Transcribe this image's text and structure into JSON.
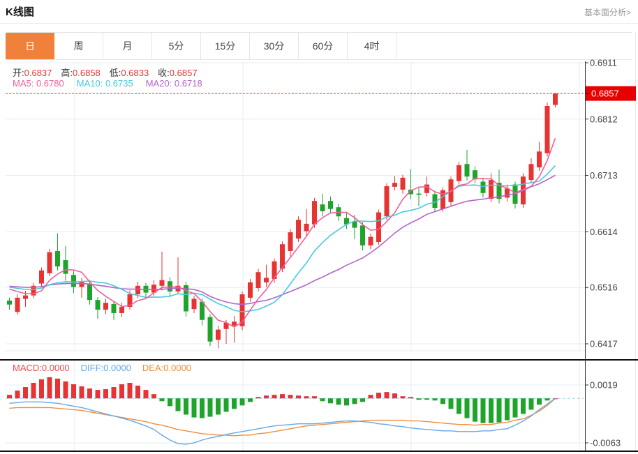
{
  "header": {
    "title": "K线图",
    "link": "基本面分析>"
  },
  "tabs": {
    "items": [
      "日",
      "周",
      "月",
      "5分",
      "15分",
      "30分",
      "60分",
      "4时"
    ],
    "active": 0
  },
  "ohlc": {
    "open_label": "开:",
    "open": "0.6837",
    "high_label": "高:",
    "high": "0.6858",
    "low_label": "低:",
    "low": "0.6833",
    "close_label": "收:",
    "close": "0.6857"
  },
  "ma": {
    "ma5_label": "MA5:",
    "ma5": "0.6780",
    "ma10_label": "MA10:",
    "ma10": "0.6735",
    "ma20_label": "MA20:",
    "ma20": "0.6718"
  },
  "macd_info": {
    "macd_label": "MACD:",
    "macd": "0.0000",
    "diff_label": "DIFF:",
    "diff": "0.0000",
    "dea_label": "DEA:",
    "dea": "0.0000"
  },
  "price_tag": "0.6857",
  "colors": {
    "up": "#e83333",
    "down": "#1ea32b",
    "ma5": "#ef5f9a",
    "ma10": "#49c8de",
    "ma20": "#b164c8",
    "diff": "#64a8e8",
    "dea": "#f08e3c",
    "macd_label": "#f24b4b",
    "accent_tab": "#f0813a",
    "tag_bg": "#e60000",
    "dashed_price": "#e13030",
    "dashed_zero": "#9fd3e8",
    "grid": "#e6edf4",
    "axis": "#333333",
    "border": "#111111"
  },
  "chart_data": {
    "type": "candlestick+macd",
    "y_axis": {
      "ticks": [
        0.6911,
        0.6812,
        0.6713,
        0.6614,
        0.6516,
        0.6417
      ],
      "labels": [
        "0.6911",
        "0.6812",
        "0.6713",
        "0.6614",
        "0.6516",
        "0.6417"
      ],
      "current": 0.6857
    },
    "macd_axis": {
      "ticks": [
        0.0019,
        -0.0063
      ],
      "labels": [
        "0.0019",
        "-0.0063"
      ]
    },
    "ma_seed": 0.652,
    "candles": [
      [
        0.6493,
        0.6486,
        0.6477,
        0.6498
      ],
      [
        0.6473,
        0.6498,
        0.6468,
        0.6504
      ],
      [
        0.6496,
        0.6502,
        0.6482,
        0.651
      ],
      [
        0.6502,
        0.6519,
        0.6497,
        0.6524
      ],
      [
        0.6523,
        0.6546,
        0.6517,
        0.6551
      ],
      [
        0.6541,
        0.6578,
        0.6536,
        0.6584
      ],
      [
        0.658,
        0.6553,
        0.6546,
        0.6611
      ],
      [
        0.6564,
        0.654,
        0.6528,
        0.6589
      ],
      [
        0.6538,
        0.6517,
        0.6506,
        0.6545
      ],
      [
        0.6517,
        0.6526,
        0.6498,
        0.6533
      ],
      [
        0.6522,
        0.6494,
        0.6486,
        0.6529
      ],
      [
        0.6494,
        0.6477,
        0.6461,
        0.6499
      ],
      [
        0.6477,
        0.6489,
        0.6469,
        0.6496
      ],
      [
        0.6487,
        0.6471,
        0.6459,
        0.6493
      ],
      [
        0.6471,
        0.6482,
        0.6464,
        0.6489
      ],
      [
        0.6482,
        0.6504,
        0.6477,
        0.6511
      ],
      [
        0.6504,
        0.6519,
        0.6497,
        0.6526
      ],
      [
        0.6519,
        0.6507,
        0.6499,
        0.6524
      ],
      [
        0.6507,
        0.6521,
        0.6501,
        0.6529
      ],
      [
        0.6519,
        0.6529,
        0.6511,
        0.6579
      ],
      [
        0.6527,
        0.6509,
        0.6499,
        0.6534
      ],
      [
        0.6509,
        0.6519,
        0.6504,
        0.6569
      ],
      [
        0.652,
        0.6474,
        0.6465,
        0.6526
      ],
      [
        0.6478,
        0.6496,
        0.6471,
        0.6501
      ],
      [
        0.6491,
        0.6459,
        0.6449,
        0.6497
      ],
      [
        0.6464,
        0.6421,
        0.6413,
        0.6469
      ],
      [
        0.6424,
        0.6442,
        0.6409,
        0.6449
      ],
      [
        0.6443,
        0.6454,
        0.6417,
        0.6459
      ],
      [
        0.6449,
        0.6456,
        0.6419,
        0.6466
      ],
      [
        0.6448,
        0.6504,
        0.6441,
        0.6509
      ],
      [
        0.6498,
        0.6525,
        0.6491,
        0.6531
      ],
      [
        0.6515,
        0.6543,
        0.6509,
        0.6549
      ],
      [
        0.6525,
        0.6533,
        0.6517,
        0.6556
      ],
      [
        0.6531,
        0.6562,
        0.6524,
        0.6567
      ],
      [
        0.6549,
        0.6592,
        0.6543,
        0.6597
      ],
      [
        0.658,
        0.6613,
        0.6571,
        0.6619
      ],
      [
        0.6602,
        0.6635,
        0.6596,
        0.6641
      ],
      [
        0.6615,
        0.6628,
        0.6607,
        0.6654
      ],
      [
        0.6627,
        0.6668,
        0.6621,
        0.6673
      ],
      [
        0.6662,
        0.665,
        0.6641,
        0.6681
      ],
      [
        0.6668,
        0.6654,
        0.6646,
        0.6676
      ],
      [
        0.6657,
        0.6641,
        0.6633,
        0.6663
      ],
      [
        0.6638,
        0.6627,
        0.6619,
        0.6649
      ],
      [
        0.6632,
        0.6621,
        0.6601,
        0.6644
      ],
      [
        0.6625,
        0.659,
        0.6581,
        0.6631
      ],
      [
        0.659,
        0.6605,
        0.6583,
        0.6611
      ],
      [
        0.6596,
        0.6648,
        0.6591,
        0.6653
      ],
      [
        0.6641,
        0.6694,
        0.6635,
        0.6699
      ],
      [
        0.6693,
        0.67,
        0.6687,
        0.6712
      ],
      [
        0.6688,
        0.6709,
        0.6681,
        0.6714
      ],
      [
        0.6688,
        0.668,
        0.6671,
        0.6724
      ],
      [
        0.6681,
        0.6679,
        0.6659,
        0.6691
      ],
      [
        0.6682,
        0.6697,
        0.6676,
        0.6711
      ],
      [
        0.668,
        0.6656,
        0.6649,
        0.6686
      ],
      [
        0.6654,
        0.6687,
        0.6649,
        0.6692
      ],
      [
        0.6666,
        0.6706,
        0.6659,
        0.6711
      ],
      [
        0.6703,
        0.6731,
        0.6697,
        0.6737
      ],
      [
        0.6733,
        0.6711,
        0.6704,
        0.6758
      ],
      [
        0.6722,
        0.6706,
        0.6699,
        0.6729
      ],
      [
        0.6702,
        0.6682,
        0.6674,
        0.6709
      ],
      [
        0.6672,
        0.6705,
        0.6666,
        0.6717
      ],
      [
        0.67,
        0.6672,
        0.6664,
        0.6723
      ],
      [
        0.6674,
        0.669,
        0.6667,
        0.6697
      ],
      [
        0.6697,
        0.6663,
        0.6655,
        0.6702
      ],
      [
        0.6662,
        0.6711,
        0.6656,
        0.6717
      ],
      [
        0.6705,
        0.6733,
        0.6699,
        0.6743
      ],
      [
        0.6727,
        0.6755,
        0.6721,
        0.6772
      ],
      [
        0.6752,
        0.6835,
        0.6746,
        0.6841
      ],
      [
        0.6837,
        0.6857,
        0.6833,
        0.6858
      ]
    ],
    "macd_hist": [
      0.0005,
      0.0011,
      0.0016,
      0.0022,
      0.0027,
      0.003,
      0.0028,
      0.0024,
      0.002,
      0.0017,
      0.0014,
      0.0012,
      0.0013,
      0.0016,
      0.002,
      0.0022,
      0.0018,
      0.0012,
      0.0006,
      -0.0004,
      -0.0011,
      -0.0018,
      -0.0023,
      -0.0027,
      -0.0028,
      -0.0026,
      -0.0023,
      -0.0019,
      -0.0015,
      -0.001,
      -0.0005,
      0.0002,
      0.0004,
      0.0005,
      0.0006,
      0.0005,
      0.0004,
      0.0003,
      0.0003,
      -0.0004,
      -0.0007,
      -0.0009,
      -0.001,
      -0.0008,
      -0.0005,
      0.0005,
      0.0008,
      0.0009,
      0.0007,
      0.0003,
      0.0002,
      -0.0002,
      -0.0002,
      -0.0003,
      -0.0008,
      -0.0015,
      -0.0022,
      -0.0028,
      -0.0033,
      -0.0035,
      -0.0035,
      -0.0034,
      -0.0031,
      -0.0027,
      -0.0022,
      -0.0016,
      -0.0009,
      -0.0003,
      0.0
    ],
    "diff": [
      -0.0007,
      -0.0006,
      -0.0005,
      -0.0005,
      -0.0005,
      -0.0006,
      -0.0007,
      -0.0009,
      -0.0011,
      -0.0013,
      -0.0016,
      -0.0019,
      -0.0022,
      -0.0025,
      -0.0028,
      -0.0031,
      -0.0035,
      -0.0039,
      -0.0044,
      -0.0052,
      -0.0059,
      -0.0064,
      -0.0065,
      -0.0063,
      -0.0059,
      -0.0056,
      -0.0054,
      -0.0051,
      -0.0049,
      -0.0047,
      -0.0045,
      -0.0043,
      -0.0041,
      -0.0039,
      -0.0038,
      -0.0037,
      -0.0036,
      -0.0036,
      -0.0036,
      -0.0035,
      -0.0034,
      -0.0033,
      -0.0032,
      -0.0032,
      -0.0033,
      -0.0034,
      -0.0036,
      -0.0037,
      -0.0039,
      -0.004,
      -0.0042,
      -0.0043,
      -0.0044,
      -0.0045,
      -0.0046,
      -0.0046,
      -0.0047,
      -0.0047,
      -0.0047,
      -0.0046,
      -0.0046,
      -0.0044,
      -0.0043,
      -0.0038,
      -0.0032,
      -0.0025,
      -0.0016,
      -0.0008,
      0.0
    ],
    "dea": [
      -0.0014,
      -0.0013,
      -0.0013,
      -0.0013,
      -0.0013,
      -0.0013,
      -0.0014,
      -0.0015,
      -0.0016,
      -0.0017,
      -0.0019,
      -0.0021,
      -0.0023,
      -0.0025,
      -0.0027,
      -0.0029,
      -0.0031,
      -0.0033,
      -0.0036,
      -0.0038,
      -0.0041,
      -0.0044,
      -0.0046,
      -0.0048,
      -0.005,
      -0.0051,
      -0.0052,
      -0.0052,
      -0.0053,
      -0.0052,
      -0.0052,
      -0.005,
      -0.0049,
      -0.0047,
      -0.0045,
      -0.0043,
      -0.0041,
      -0.0039,
      -0.0038,
      -0.0037,
      -0.0036,
      -0.0035,
      -0.0034,
      -0.0033,
      -0.0032,
      -0.0031,
      -0.0031,
      -0.0031,
      -0.0031,
      -0.0031,
      -0.0032,
      -0.0032,
      -0.0033,
      -0.0034,
      -0.0035,
      -0.0036,
      -0.0037,
      -0.0037,
      -0.0038,
      -0.0037,
      -0.0037,
      -0.0035,
      -0.0034,
      -0.0031,
      -0.0029,
      -0.0024,
      -0.0018,
      -0.001,
      0.0
    ]
  }
}
